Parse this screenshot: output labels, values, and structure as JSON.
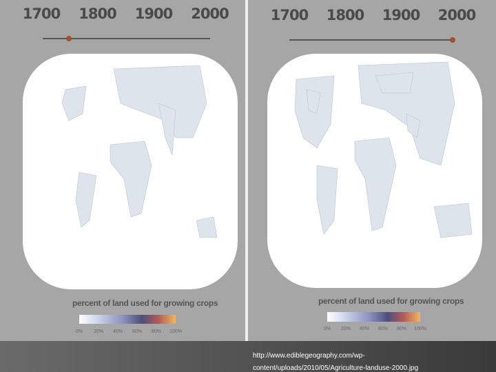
{
  "panels": [
    {
      "timeline": [
        "1700",
        "1800",
        "1900",
        "2000"
      ],
      "legend": {
        "title": "percent of land used for growing crops",
        "ticks": [
          "0%",
          "20%",
          "40%",
          "60%",
          "80%",
          "100%"
        ]
      }
    },
    {
      "timeline": [
        "1700",
        "1800",
        "1900",
        "2000"
      ],
      "legend": {
        "title": "percent of land used for growing crops",
        "ticks": [
          "0%",
          "20%",
          "40%",
          "60%",
          "80%",
          "100%"
        ]
      }
    }
  ],
  "caption": [
    "http://www.ediblegeography.com/wp-",
    "content/uploads/2010/05/Agriculture-landuse-2000.jpg"
  ]
}
